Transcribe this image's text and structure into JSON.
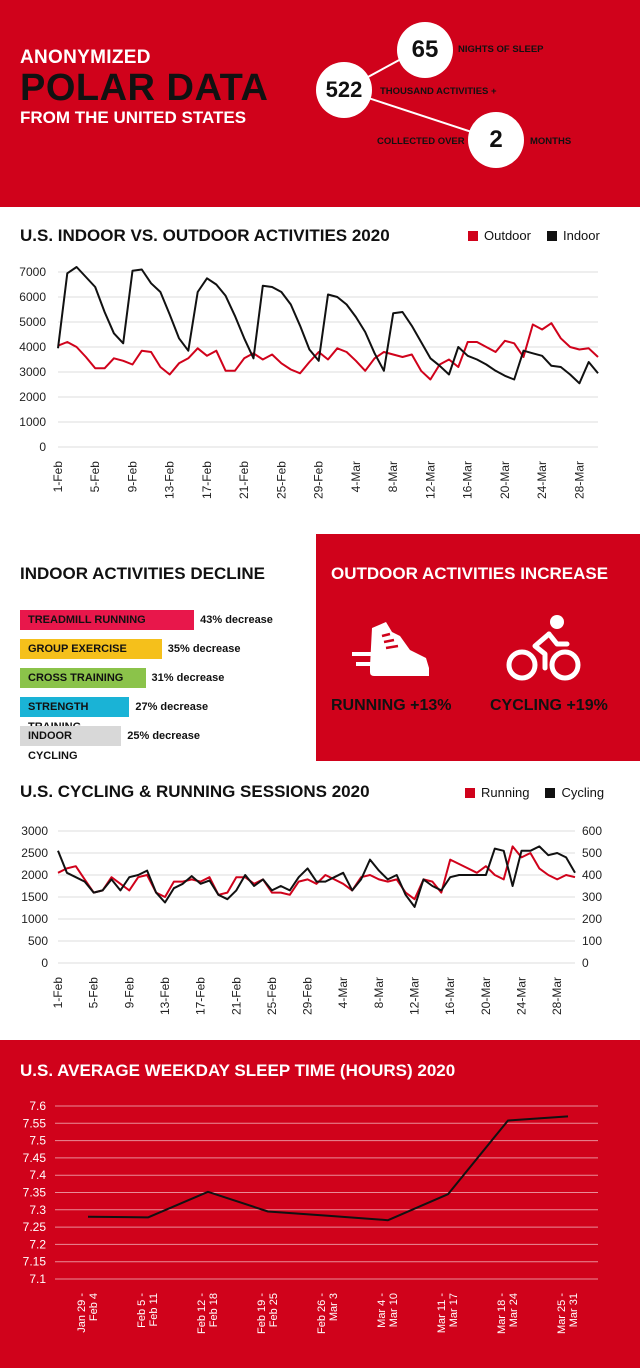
{
  "header": {
    "line1": "ANONYMIZED",
    "line2": "POLAR DATA",
    "line3": "FROM THE UNITED STATES",
    "stats": [
      {
        "value": "65",
        "label": "NIGHTS OF SLEEP"
      },
      {
        "value": "522",
        "label": "THOUSAND ACTIVITIES +"
      },
      {
        "value": "2",
        "label": "MONTHS",
        "prefix": "COLLECTED OVER"
      }
    ]
  },
  "colors": {
    "red": "#d0021b",
    "black": "#111111"
  },
  "chart1": {
    "title": "U.S. INDOOR VS. OUTDOOR ACTIVITIES 2020",
    "legend": [
      "Outdoor",
      "Indoor"
    ]
  },
  "chart2": {
    "title": "U.S. CYCLING & RUNNING SESSIONS 2020",
    "legend": [
      "Running",
      "Cycling"
    ]
  },
  "chart3": {
    "title": "U.S. AVERAGE WEEKDAY SLEEP TIME (HOURS) 2020"
  },
  "indoor": {
    "title": "INDOOR ACTIVITIES DECLINE",
    "items": [
      {
        "label": "TREADMILL RUNNING",
        "pct": "43% decrease",
        "value": 43,
        "color": "#e8174b"
      },
      {
        "label": "GROUP EXERCISE",
        "pct": "35% decrease",
        "value": 35,
        "color": "#f5c01b"
      },
      {
        "label": "CROSS TRAINING",
        "pct": "31% decrease",
        "value": 31,
        "color": "#8bc34a"
      },
      {
        "label": "STRENGTH TRAINING",
        "pct": "27% decrease",
        "value": 27,
        "color": "#1ab3d6"
      },
      {
        "label": "INDOOR CYCLING",
        "pct": "25% decrease",
        "value": 25,
        "color": "#d8d8d8"
      }
    ]
  },
  "outdoor": {
    "title": "OUTDOOR ACTIVITIES INCREASE",
    "running": "RUNNING +13%",
    "cycling": "CYCLING +19%",
    "running_icon": "running-shoe-icon",
    "cycling_icon": "cyclist-icon"
  },
  "chart_data": [
    {
      "type": "line",
      "title": "U.S. INDOOR VS. OUTDOOR ACTIVITIES 2020",
      "x_ticks": [
        "1-Feb",
        "5-Feb",
        "9-Feb",
        "13-Feb",
        "17-Feb",
        "21-Feb",
        "25-Feb",
        "29-Feb",
        "4-Mar",
        "8-Mar",
        "12-Mar",
        "16-Mar",
        "20-Mar",
        "24-Mar",
        "28-Mar"
      ],
      "ylim": [
        0,
        7000
      ],
      "y_ticks": [
        0,
        1000,
        2000,
        3000,
        4000,
        5000,
        6000,
        7000
      ],
      "legend_position": "top-right",
      "series": [
        {
          "name": "Outdoor",
          "color": "#d0021b",
          "values": [
            4050,
            4200,
            4000,
            3600,
            3150,
            3150,
            3550,
            3450,
            3300,
            3850,
            3800,
            3200,
            2900,
            3350,
            3550,
            3950,
            3650,
            3850,
            3050,
            3050,
            3550,
            3750,
            3500,
            3700,
            3350,
            3100,
            2950,
            3400,
            3800,
            3500,
            3950,
            3800,
            3450,
            3050,
            3550,
            3800,
            3700,
            3600,
            3700,
            3050,
            2700,
            3300,
            3500,
            3200,
            4200,
            4200,
            4000,
            3800,
            4250,
            4150,
            3600,
            4900,
            4700,
            4950,
            4350,
            4000,
            3900,
            3950,
            3600
          ]
        },
        {
          "name": "Indoor",
          "color": "#111111",
          "values": [
            3950,
            6950,
            7200,
            6800,
            6400,
            5400,
            4550,
            4150,
            7050,
            7100,
            6550,
            6200,
            5300,
            4350,
            3850,
            6200,
            6750,
            6500,
            6050,
            5250,
            4350,
            3550,
            6450,
            6400,
            6200,
            5700,
            4850,
            3900,
            3450,
            6100,
            6000,
            5700,
            5200,
            4600,
            3750,
            3050,
            5350,
            5400,
            4850,
            4200,
            3550,
            3250,
            2900,
            4000,
            3650,
            3500,
            3300,
            3050,
            2850,
            2700,
            3850,
            3750,
            3650,
            3250,
            3200,
            2900,
            2550,
            3400,
            2950
          ]
        }
      ]
    },
    {
      "type": "line",
      "title": "U.S. CYCLING & RUNNING SESSIONS 2020",
      "x_ticks": [
        "1-Feb",
        "5-Feb",
        "9-Feb",
        "13-Feb",
        "17-Feb",
        "21-Feb",
        "25-Feb",
        "29-Feb",
        "4-Mar",
        "8-Mar",
        "12-Mar",
        "16-Mar",
        "20-Mar",
        "24-Mar",
        "28-Mar"
      ],
      "ylim_left": [
        0,
        3000
      ],
      "y_ticks_left": [
        0,
        500,
        1000,
        1500,
        2000,
        2500,
        3000
      ],
      "ylim_right": [
        0,
        600
      ],
      "y_ticks_right": [
        0,
        100,
        200,
        300,
        400,
        500,
        600
      ],
      "legend_position": "top-right",
      "series": [
        {
          "name": "Running",
          "axis": "left",
          "color": "#d0021b",
          "values": [
            2050,
            2150,
            2200,
            1900,
            1600,
            1650,
            1950,
            1800,
            1650,
            1950,
            2000,
            1600,
            1500,
            1850,
            1850,
            1900,
            1850,
            1950,
            1550,
            1600,
            1950,
            1950,
            1800,
            1900,
            1600,
            1600,
            1550,
            1850,
            1900,
            1800,
            2000,
            1900,
            1800,
            1650,
            1950,
            2000,
            1900,
            1850,
            1900,
            1600,
            1450,
            1900,
            1850,
            1600,
            2350,
            2250,
            2150,
            2050,
            2200,
            2000,
            1900,
            2650,
            2400,
            2500,
            2150,
            2000,
            1900,
            2000,
            1950
          ]
        },
        {
          "name": "Cycling",
          "axis": "right",
          "color": "#111111",
          "values": [
            510,
            410,
            390,
            370,
            320,
            330,
            380,
            330,
            390,
            400,
            420,
            320,
            275,
            340,
            360,
            395,
            360,
            375,
            310,
            290,
            330,
            400,
            350,
            380,
            330,
            350,
            330,
            390,
            430,
            370,
            370,
            390,
            410,
            330,
            380,
            470,
            420,
            380,
            400,
            310,
            255,
            380,
            350,
            330,
            390,
            400,
            400,
            400,
            400,
            520,
            510,
            350,
            510,
            510,
            530,
            490,
            500,
            480,
            410
          ]
        }
      ]
    },
    {
      "type": "line",
      "title": "U.S. AVERAGE WEEKDAY SLEEP TIME (HOURS) 2020",
      "categories": [
        "Jan 29 - Feb 4",
        "Feb 5 - Feb 11",
        "Feb 12 - Feb 18",
        "Feb 19 - Feb 25",
        "Feb 26 - Mar 3",
        "Mar 4 - Mar 10",
        "Mar 11 - Mar 17",
        "Mar 18 - Mar 24",
        "Mar 25 - Mar 31"
      ],
      "ylim": [
        7.1,
        7.6
      ],
      "y_ticks": [
        "7.1",
        "7.15",
        "7.2",
        "7.25",
        "7.3",
        "7.35",
        "7.4",
        "7.45",
        "7.5",
        "7.55",
        "7.6"
      ],
      "series": [
        {
          "values": [
            7.28,
            7.278,
            7.352,
            7.295,
            7.283,
            7.27,
            7.345,
            7.558,
            7.57
          ]
        }
      ]
    }
  ]
}
